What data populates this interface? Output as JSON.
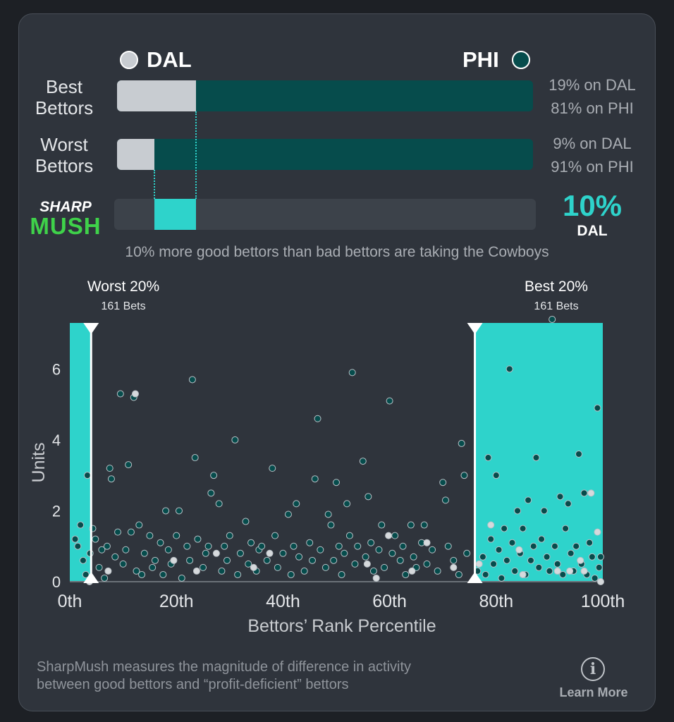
{
  "teams": {
    "away": {
      "abbr": "DAL",
      "color": "#c8ccd1"
    },
    "home": {
      "abbr": "PHI",
      "color": "#064c4c"
    }
  },
  "best_bettors": {
    "label_line1": "Best",
    "label_line2": "Bettors",
    "away_pct": 19,
    "home_pct": 81,
    "away_text": "19% on DAL",
    "home_text": "81% on PHI"
  },
  "worst_bettors": {
    "label_line1": "Worst",
    "label_line2": "Bettors",
    "away_pct": 9,
    "home_pct": 91,
    "away_text": "9% on DAL",
    "home_text": "91% on PHI"
  },
  "sharpmush": {
    "logo_line1": "SHARP",
    "logo_line2": "MUSH",
    "value_text": "10%",
    "team": "DAL",
    "from_pct": 9,
    "to_pct": 19,
    "caption": "10% more good bettors than bad bettors are taking the Cowboys",
    "accent": "#2ed3cb"
  },
  "groups": {
    "worst": {
      "title": "Worst 20%",
      "sub": "161 Bets"
    },
    "best": {
      "title": "Best 20%",
      "sub": "161 Bets"
    }
  },
  "chart_data": {
    "type": "scatter",
    "title": "",
    "xlabel": "Bettors’ Rank Percentile",
    "ylabel": "Units",
    "xlim": [
      0,
      100
    ],
    "ylim": [
      0,
      7.3
    ],
    "x_ticks": [
      0,
      20,
      40,
      60,
      80,
      100
    ],
    "x_tick_labels": [
      "0th",
      "20th",
      "40th",
      "60th",
      "80th",
      "100th"
    ],
    "y_ticks": [
      0,
      2,
      4,
      6
    ],
    "y_tick_labels": [
      "0",
      "2",
      "4",
      "6"
    ],
    "highlight_ranges": [
      [
        0,
        4
      ],
      [
        76,
        100
      ]
    ],
    "series": [
      {
        "name": "PHI bets",
        "color": "#064c4c",
        "points": [
          [
            1.0,
            1.2
          ],
          [
            1.5,
            1.0
          ],
          [
            2.0,
            1.6
          ],
          [
            2.5,
            0.6
          ],
          [
            3.0,
            0.2
          ],
          [
            3.3,
            3.0
          ],
          [
            3.8,
            0.8
          ],
          [
            4.3,
            1.5
          ],
          [
            4.8,
            1.2
          ],
          [
            5.5,
            0.4
          ],
          [
            6.0,
            0.9
          ],
          [
            6.5,
            0.1
          ],
          [
            7.0,
            1.0
          ],
          [
            7.5,
            3.2
          ],
          [
            7.8,
            2.9
          ],
          [
            8.5,
            0.7
          ],
          [
            9.0,
            1.4
          ],
          [
            9.5,
            5.3
          ],
          [
            10.0,
            0.5
          ],
          [
            10.5,
            0.9
          ],
          [
            11.0,
            3.3
          ],
          [
            11.5,
            1.4
          ],
          [
            12.0,
            5.2
          ],
          [
            12.5,
            0.3
          ],
          [
            13.0,
            1.6
          ],
          [
            13.5,
            0.2
          ],
          [
            14.0,
            0.8
          ],
          [
            15.0,
            1.3
          ],
          [
            15.5,
            0.4
          ],
          [
            16.0,
            0.6
          ],
          [
            17.0,
            1.1
          ],
          [
            17.5,
            0.2
          ],
          [
            18.0,
            2.0
          ],
          [
            18.5,
            0.9
          ],
          [
            19.0,
            0.5
          ],
          [
            20.0,
            1.3
          ],
          [
            20.5,
            2.0
          ],
          [
            21.0,
            0.1
          ],
          [
            22.0,
            1.0
          ],
          [
            22.5,
            0.6
          ],
          [
            23.0,
            5.7
          ],
          [
            23.5,
            3.5
          ],
          [
            24.0,
            1.2
          ],
          [
            25.0,
            0.4
          ],
          [
            25.5,
            0.8
          ],
          [
            26.0,
            1.0
          ],
          [
            26.5,
            2.5
          ],
          [
            27.0,
            3.0
          ],
          [
            28.0,
            2.2
          ],
          [
            28.5,
            0.3
          ],
          [
            29.0,
            1.0
          ],
          [
            29.5,
            0.6
          ],
          [
            30.0,
            1.3
          ],
          [
            31.0,
            4.0
          ],
          [
            31.5,
            0.2
          ],
          [
            32.0,
            0.8
          ],
          [
            33.0,
            1.7
          ],
          [
            33.5,
            0.5
          ],
          [
            34.0,
            1.1
          ],
          [
            35.0,
            0.3
          ],
          [
            35.5,
            0.9
          ],
          [
            36.0,
            1.0
          ],
          [
            37.0,
            0.6
          ],
          [
            38.0,
            3.2
          ],
          [
            38.5,
            1.3
          ],
          [
            39.0,
            0.4
          ],
          [
            40.0,
            0.8
          ],
          [
            41.0,
            1.9
          ],
          [
            41.5,
            0.2
          ],
          [
            42.0,
            1.0
          ],
          [
            42.5,
            2.2
          ],
          [
            43.0,
            0.7
          ],
          [
            44.0,
            0.3
          ],
          [
            45.0,
            1.1
          ],
          [
            45.5,
            0.6
          ],
          [
            46.0,
            2.9
          ],
          [
            46.5,
            4.6
          ],
          [
            47.0,
            0.9
          ],
          [
            48.0,
            0.4
          ],
          [
            48.5,
            1.9
          ],
          [
            49.0,
            1.6
          ],
          [
            49.5,
            0.6
          ],
          [
            50.0,
            2.8
          ],
          [
            50.5,
            1.0
          ],
          [
            51.0,
            0.2
          ],
          [
            51.5,
            0.8
          ],
          [
            52.0,
            2.2
          ],
          [
            52.5,
            1.3
          ],
          [
            53.0,
            5.9
          ],
          [
            53.5,
            0.5
          ],
          [
            54.0,
            1.0
          ],
          [
            55.0,
            3.4
          ],
          [
            55.5,
            0.7
          ],
          [
            56.0,
            2.4
          ],
          [
            56.5,
            1.1
          ],
          [
            57.0,
            0.3
          ],
          [
            58.0,
            0.9
          ],
          [
            58.5,
            1.6
          ],
          [
            59.0,
            0.4
          ],
          [
            60.0,
            5.1
          ],
          [
            60.5,
            0.8
          ],
          [
            61.0,
            1.3
          ],
          [
            62.0,
            0.6
          ],
          [
            62.5,
            1.0
          ],
          [
            63.0,
            0.2
          ],
          [
            64.0,
            1.6
          ],
          [
            64.5,
            0.7
          ],
          [
            65.0,
            0.4
          ],
          [
            66.0,
            1.1
          ],
          [
            66.5,
            1.6
          ],
          [
            67.0,
            0.5
          ],
          [
            68.0,
            0.9
          ],
          [
            69.0,
            0.3
          ],
          [
            70.0,
            2.8
          ],
          [
            70.5,
            2.3
          ],
          [
            71.0,
            1.0
          ],
          [
            72.0,
            0.6
          ],
          [
            73.0,
            0.2
          ],
          [
            73.5,
            3.9
          ],
          [
            74.0,
            3.0
          ],
          [
            74.5,
            0.8
          ],
          [
            76.5,
            0.3
          ],
          [
            77.5,
            0.7
          ],
          [
            78.0,
            0.2
          ],
          [
            78.5,
            3.5
          ],
          [
            79.0,
            1.2
          ],
          [
            79.5,
            0.5
          ],
          [
            80.0,
            3.0
          ],
          [
            80.5,
            0.9
          ],
          [
            81.0,
            0.1
          ],
          [
            81.5,
            1.5
          ],
          [
            82.0,
            0.6
          ],
          [
            82.5,
            6.0
          ],
          [
            83.0,
            1.1
          ],
          [
            83.5,
            0.3
          ],
          [
            84.0,
            2.0
          ],
          [
            84.5,
            0.8
          ],
          [
            85.0,
            1.5
          ],
          [
            85.5,
            0.2
          ],
          [
            86.0,
            2.3
          ],
          [
            86.5,
            0.6
          ],
          [
            87.0,
            1.0
          ],
          [
            87.5,
            3.5
          ],
          [
            88.0,
            0.4
          ],
          [
            88.5,
            1.2
          ],
          [
            89.0,
            2.0
          ],
          [
            89.5,
            0.7
          ],
          [
            90.0,
            0.3
          ],
          [
            90.5,
            7.4
          ],
          [
            91.0,
            1.0
          ],
          [
            91.5,
            0.5
          ],
          [
            92.0,
            2.4
          ],
          [
            92.5,
            0.2
          ],
          [
            93.0,
            1.5
          ],
          [
            93.5,
            2.2
          ],
          [
            94.0,
            0.8
          ],
          [
            94.5,
            0.3
          ],
          [
            95.0,
            1.0
          ],
          [
            95.5,
            3.6
          ],
          [
            96.0,
            0.5
          ],
          [
            96.5,
            2.5
          ],
          [
            97.0,
            0.2
          ],
          [
            97.5,
            1.1
          ],
          [
            98.0,
            0.7
          ],
          [
            98.5,
            0.1
          ],
          [
            99.0,
            4.9
          ],
          [
            99.3,
            0.4
          ],
          [
            99.6,
            0.7
          ]
        ]
      },
      {
        "name": "DAL bets",
        "color": "#d6d9dc",
        "points": [
          [
            3.7,
            0.0
          ],
          [
            7.2,
            0.3
          ],
          [
            12.3,
            5.3
          ],
          [
            19.5,
            0.6
          ],
          [
            23.8,
            0.3
          ],
          [
            27.5,
            0.8
          ],
          [
            34.5,
            0.4
          ],
          [
            37.5,
            0.8
          ],
          [
            55.8,
            0.5
          ],
          [
            57.5,
            0.1
          ],
          [
            59.8,
            1.3
          ],
          [
            64.2,
            0.3
          ],
          [
            67.0,
            1.1
          ],
          [
            72.0,
            0.4
          ],
          [
            76.8,
            0.5
          ],
          [
            79.0,
            1.6
          ],
          [
            84.3,
            0.9
          ],
          [
            85.0,
            0.2
          ],
          [
            91.5,
            0.3
          ],
          [
            93.8,
            0.3
          ],
          [
            95.8,
            0.6
          ],
          [
            96.5,
            0.3
          ],
          [
            97.8,
            2.5
          ],
          [
            99.0,
            1.4
          ],
          [
            99.6,
            0.0
          ]
        ]
      }
    ]
  },
  "footer": {
    "text_line1": "SharpMush measures the magnitude of difference in activity",
    "text_line2": "between good bettors and “profit-deficient” bettors",
    "info_glyph": "i",
    "learn_more": "Learn More"
  }
}
